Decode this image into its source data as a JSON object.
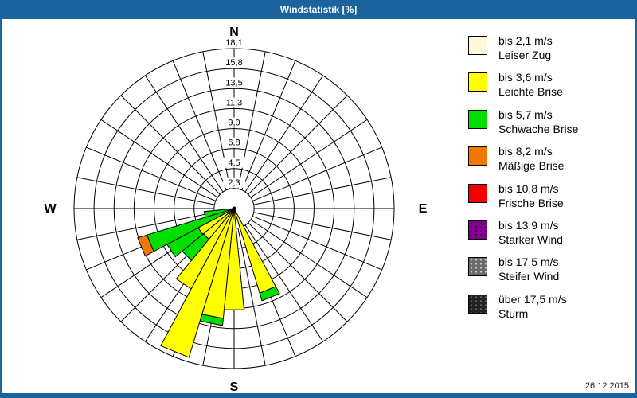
{
  "window": {
    "title": "Windstatistik [%]"
  },
  "footer": {
    "date": "26.12.2015"
  },
  "colors": {
    "title_bar": "#1B639D",
    "window_border": "#1B639D",
    "background": "#FFFFFF",
    "grid": "#000000",
    "text": "#000000"
  },
  "legend": {
    "items": [
      {
        "id": "leiser-zug",
        "speed": "bis 2,1 m/s",
        "name": "Leiser Zug",
        "color": "#FFF8DB",
        "stipple": false,
        "dot_color": null
      },
      {
        "id": "leichte-brise",
        "speed": "bis 3,6 m/s",
        "name": "Leichte Brise",
        "color": "#FFFF00",
        "stipple": false,
        "dot_color": null
      },
      {
        "id": "schwache-brise",
        "speed": "bis 5,7 m/s",
        "name": "Schwache Brise",
        "color": "#00DF00",
        "stipple": false,
        "dot_color": null
      },
      {
        "id": "maessige-brise",
        "speed": "bis 8,2 m/s",
        "name": "Mäßige Brise",
        "color": "#F07800",
        "stipple": false,
        "dot_color": null
      },
      {
        "id": "frische-brise",
        "speed": "bis 10,8 m/s",
        "name": "Frische Brise",
        "color": "#F40000",
        "stipple": false,
        "dot_color": null
      },
      {
        "id": "starker-wind",
        "speed": "bis 13,9 m/s",
        "name": "Starker Wind",
        "color": "#800090",
        "stipple": true,
        "dot_color": "rgba(0,0,0,0.45)"
      },
      {
        "id": "steifer-wind",
        "speed": "bis 17,5 m/s",
        "name": "Steifer Wind",
        "color": "#6B6B6B",
        "stipple": true,
        "dot_color": "rgba(255,255,255,0.65)"
      },
      {
        "id": "sturm",
        "speed": "über 17,5 m/s",
        "name": "Sturm",
        "color": "#212121",
        "stipple": true,
        "dot_color": "rgba(110,110,110,0.9)"
      }
    ]
  },
  "chart_data": {
    "type": "wind_rose_polar_bar",
    "title": "Windstatistik [%]",
    "units": "%",
    "sector_count": 32,
    "sector_width_deg": 11.25,
    "compass_labels": [
      "N",
      "E",
      "S",
      "W"
    ],
    "rings": {
      "count": 8,
      "max_value": 18.1,
      "values": [
        2.3,
        4.5,
        6.8,
        9.0,
        11.3,
        13.5,
        15.8,
        18.1
      ],
      "labels": [
        "2,3",
        "4,5",
        "6,8",
        "9,0",
        "11,3",
        "13,5",
        "15,8",
        "18,1"
      ]
    },
    "petals": [
      {
        "direction": "SSE",
        "bearing_deg": 157.5,
        "segments": [
          {
            "class": "leichte-brise",
            "to": 10.0
          },
          {
            "class": "schwache-brise",
            "to": 10.9
          }
        ]
      },
      {
        "direction": "S",
        "bearing_deg": 180.0,
        "segments": [
          {
            "class": "leichte-brise",
            "to": 11.5
          }
        ]
      },
      {
        "direction": "SbW",
        "bearing_deg": 191.25,
        "segments": [
          {
            "class": "leichte-brise",
            "to": 12.5
          },
          {
            "class": "schwache-brise",
            "to": 13.3
          }
        ]
      },
      {
        "direction": "SSW",
        "bearing_deg": 202.5,
        "segments": [
          {
            "class": "leichte-brise",
            "to": 17.6
          }
        ]
      },
      {
        "direction": "SWbS",
        "bearing_deg": 213.75,
        "segments": [
          {
            "class": "leichte-brise",
            "to": 10.3
          }
        ]
      },
      {
        "direction": "SW",
        "bearing_deg": 225.0,
        "segments": [
          {
            "class": "leichte-brise",
            "to": 4.5
          },
          {
            "class": "schwache-brise",
            "to": 7.6
          }
        ]
      },
      {
        "direction": "SWbW",
        "bearing_deg": 236.25,
        "segments": [
          {
            "class": "leichte-brise",
            "to": 4.6
          },
          {
            "class": "schwache-brise",
            "to": 8.6
          }
        ]
      },
      {
        "direction": "WSW",
        "bearing_deg": 247.5,
        "segments": [
          {
            "class": "schwache-brise",
            "to": 10.3
          },
          {
            "class": "maessige-brise",
            "to": 11.4
          }
        ]
      },
      {
        "direction": "WbS",
        "bearing_deg": 258.75,
        "segments": [
          {
            "class": "schwache-brise",
            "to": 3.4
          }
        ]
      }
    ]
  }
}
